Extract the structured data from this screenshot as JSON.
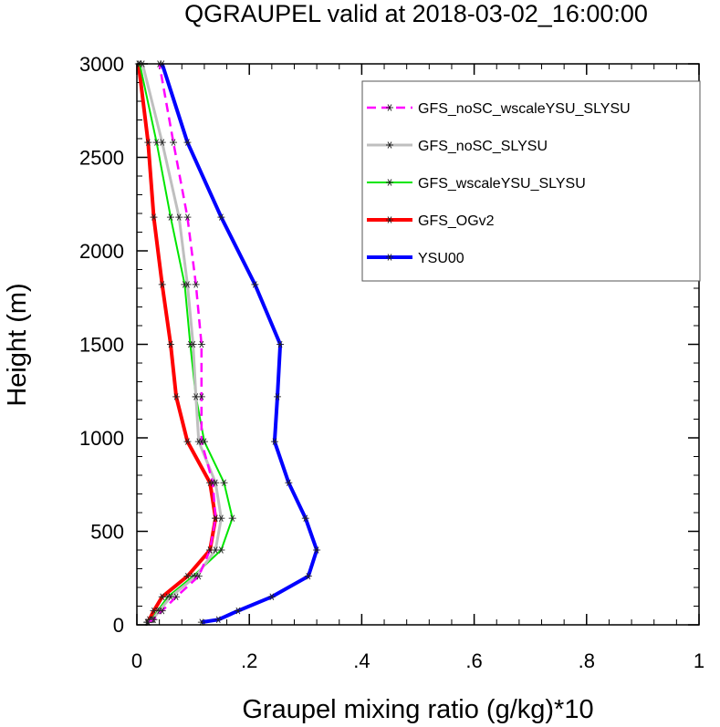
{
  "chart_data": {
    "type": "line",
    "title": "QGRAUPEL valid at 2018-03-02_16:00:00",
    "xlabel": "Graupel mixing ratio (g/kg)*10",
    "ylabel": "Height (m)",
    "xlim": [
      0,
      1
    ],
    "ylim": [
      0,
      3000
    ],
    "x_ticks": [
      0,
      0.2,
      0.4,
      0.6,
      0.8,
      1
    ],
    "x_tick_labels": [
      "0",
      ".2",
      ".4",
      ".6",
      ".8",
      "1"
    ],
    "y_ticks": [
      0,
      500,
      1000,
      1500,
      2000,
      2500,
      3000
    ],
    "y_tick_labels": [
      "0",
      "500",
      "1000",
      "1500",
      "2000",
      "2500",
      "3000"
    ],
    "grid": false,
    "legend_position": "top-right",
    "y": [
      14,
      28,
      75,
      150,
      260,
      400,
      570,
      760,
      980,
      1220,
      1500,
      1820,
      2180,
      2580,
      3000
    ],
    "series": [
      {
        "name": "GFS_noSC_wscaleYSU_SLYSU",
        "color": "#ff00ff",
        "dash": "dashed",
        "width": 2.5,
        "values": [
          0.02,
          0.03,
          0.045,
          0.07,
          0.11,
          0.13,
          0.14,
          0.135,
          0.115,
          0.115,
          0.115,
          0.105,
          0.09,
          0.065,
          0.04
        ]
      },
      {
        "name": "GFS_noSC_SLYSU",
        "color": "#bfbfbf",
        "dash": "solid",
        "width": 3,
        "values": [
          0.02,
          0.028,
          0.04,
          0.06,
          0.105,
          0.14,
          0.15,
          0.14,
          0.11,
          0.105,
          0.1,
          0.09,
          0.075,
          0.045,
          0.01
        ]
      },
      {
        "name": "GFS_wscaleYSU_SLYSU",
        "color": "#00e600",
        "dash": "solid",
        "width": 2,
        "values": [
          0.02,
          0.026,
          0.037,
          0.055,
          0.1,
          0.15,
          0.17,
          0.155,
          0.12,
          0.105,
          0.095,
          0.085,
          0.06,
          0.035,
          0.005
        ]
      },
      {
        "name": "GFS_OGv2",
        "color": "#ff0000",
        "dash": "solid",
        "width": 4,
        "values": [
          0.018,
          0.022,
          0.03,
          0.045,
          0.09,
          0.13,
          0.14,
          0.13,
          0.09,
          0.07,
          0.06,
          0.045,
          0.03,
          0.02,
          0.003
        ]
      },
      {
        "name": "YSU00",
        "color": "#0000ff",
        "dash": "solid",
        "width": 4,
        "values": [
          0.115,
          0.145,
          0.18,
          0.24,
          0.305,
          0.32,
          0.3,
          0.27,
          0.245,
          0.25,
          0.255,
          0.21,
          0.15,
          0.09,
          0.045
        ]
      }
    ]
  }
}
